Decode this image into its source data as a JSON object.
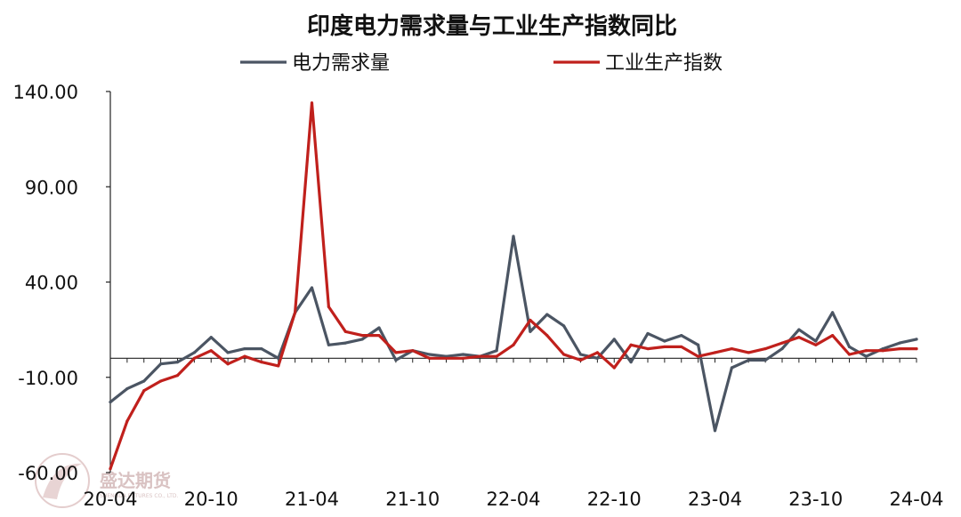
{
  "chart_data": {
    "type": "line",
    "title": "印度电力需求量与工业生产指数同比",
    "xlabel": "",
    "ylabel": "",
    "ylim": [
      -60,
      140
    ],
    "yticks": [
      "140.00",
      "90.00",
      "40.00",
      "-10.00",
      "-60.00"
    ],
    "ytick_values": [
      140,
      90,
      40,
      -10,
      -60
    ],
    "x_tick_labels": [
      "20-04",
      "20-10",
      "21-04",
      "21-10",
      "22-04",
      "22-10",
      "23-04",
      "23-10",
      "24-04"
    ],
    "x_tick_values": [
      0,
      6,
      12,
      18,
      24,
      30,
      36,
      42,
      48
    ],
    "x_count": 49,
    "legend_position": "top",
    "series": [
      {
        "name": "电力需求量",
        "color": "#4b5563",
        "values": [
          -23,
          -16,
          -12,
          -3,
          -2,
          3,
          11,
          3,
          5,
          5,
          0,
          24,
          37,
          7,
          8,
          10,
          16,
          -1,
          4,
          2,
          1,
          2,
          1,
          4,
          64,
          14,
          23,
          17,
          2,
          0,
          10,
          -2,
          13,
          9,
          12,
          7,
          -38,
          -5,
          -1,
          -1,
          5,
          15,
          9,
          24,
          6,
          1,
          5,
          8,
          10
        ]
      },
      {
        "name": "工业生产指数",
        "color": "#c0201c",
        "values": [
          -58,
          -33,
          -17,
          -12,
          -9,
          0,
          4,
          -3,
          1,
          -2,
          -4,
          24,
          134,
          27,
          14,
          12,
          12,
          3,
          4,
          0,
          0,
          0,
          1,
          1,
          7,
          20,
          12,
          2,
          -1,
          3,
          -5,
          7,
          5,
          6,
          6,
          1,
          3,
          5,
          3,
          5,
          8,
          11,
          7,
          12,
          2,
          4,
          4,
          5,
          5
        ]
      }
    ]
  },
  "watermark": {
    "brand": "盛达期货",
    "sub": "SHENGDA FUTURES CO., LTD."
  }
}
